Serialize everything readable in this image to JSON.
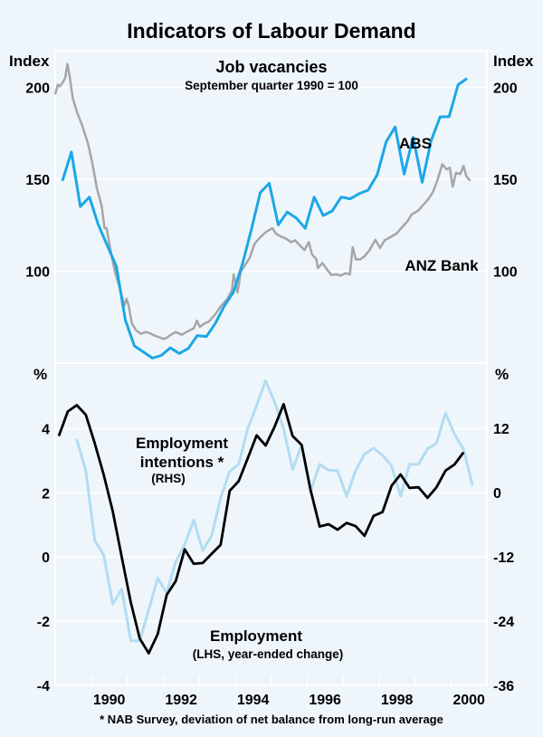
{
  "chart_data": [
    {
      "type": "line",
      "title": "Indicators of Labour Demand",
      "panel_title": "Job vacancies",
      "panel_subtitle": "September quarter 1990 = 100",
      "ylabel_left": "Index",
      "ylabel_right": "Index",
      "ylim": [
        50,
        220
      ],
      "yticks": [
        100,
        150,
        200
      ],
      "ytick_labels": [
        "100",
        "150",
        "200"
      ],
      "xlim": [
        1989,
        2001
      ],
      "grid": true,
      "series": [
        {
          "name": "ABS",
          "color": "#1ca7e6",
          "x": [
            1989.2,
            1989.45,
            1989.7,
            1989.95,
            1990.2,
            1990.45,
            1990.7,
            1990.95,
            1991.2,
            1991.45,
            1991.7,
            1991.95,
            1992.2,
            1992.45,
            1992.7,
            1992.95,
            1993.2,
            1993.45,
            1993.7,
            1993.95,
            1994.2,
            1994.45,
            1994.7,
            1994.95,
            1995.2,
            1995.45,
            1995.7,
            1995.95,
            1996.2,
            1996.45,
            1996.7,
            1996.95,
            1997.2,
            1997.45,
            1997.7,
            1997.95,
            1998.2,
            1998.45,
            1998.7,
            1998.95,
            1999.2,
            1999.45,
            1999.7,
            1999.95,
            2000.2,
            2000.45
          ],
          "y": [
            149.2,
            164.8,
            135.2,
            140.3,
            125.2,
            113.9,
            102.6,
            73.4,
            59.3,
            56.1,
            52.7,
            54.2,
            58.3,
            55.2,
            58.0,
            65.0,
            64.4,
            71.6,
            81.0,
            88.5,
            103.6,
            122.4,
            142.8,
            147.8,
            125.2,
            132.2,
            129.0,
            123.3,
            140.3,
            130.3,
            132.8,
            140.3,
            139.4,
            142.2,
            144.1,
            152.5,
            170.4,
            178.5,
            152.9,
            172.9,
            148.4,
            171.0,
            184.0,
            184.2,
            201.5,
            204.9
          ]
        },
        {
          "name": "ANZ Bank",
          "color": "#a6a6a6",
          "x": [
            1989.0,
            1989.07,
            1989.13,
            1989.22,
            1989.28,
            1989.34,
            1989.4,
            1989.49,
            1989.61,
            1989.74,
            1989.91,
            1990.03,
            1990.16,
            1990.29,
            1990.37,
            1990.43,
            1990.54,
            1990.66,
            1990.83,
            1990.92,
            1990.98,
            1991.04,
            1991.13,
            1991.25,
            1991.38,
            1991.51,
            1991.63,
            1991.76,
            1991.89,
            1992.01,
            1992.1,
            1992.18,
            1992.35,
            1992.52,
            1992.69,
            1992.85,
            1992.94,
            1993.02,
            1993.15,
            1993.27,
            1993.44,
            1993.61,
            1993.78,
            1993.91,
            1993.96,
            1994.03,
            1994.07,
            1994.16,
            1994.29,
            1994.41,
            1994.54,
            1994.71,
            1994.87,
            1995.04,
            1995.13,
            1995.29,
            1995.42,
            1995.55,
            1995.67,
            1995.8,
            1995.93,
            1996.05,
            1996.14,
            1996.26,
            1996.3,
            1996.43,
            1996.56,
            1996.68,
            1996.81,
            1996.94,
            1997.06,
            1997.19,
            1997.27,
            1997.36,
            1997.48,
            1997.61,
            1997.74,
            1997.9,
            1998.03,
            1998.16,
            1998.33,
            1998.49,
            1998.66,
            1998.79,
            1998.91,
            1999.08,
            1999.21,
            1999.38,
            1999.5,
            1999.63,
            1999.76,
            1999.88,
            1999.97,
            2000.05,
            2000.14,
            2000.26,
            2000.35,
            2000.43,
            2000.54
          ],
          "y": [
            196.2,
            201.5,
            200.6,
            203.0,
            205.3,
            212.8,
            206.2,
            194.0,
            186.4,
            179.9,
            169.5,
            159.2,
            145.0,
            135.6,
            123.4,
            123.4,
            111.1,
            99.8,
            88.5,
            81.0,
            85.1,
            81.4,
            71.6,
            67.8,
            65.9,
            66.9,
            66.3,
            65.0,
            64.0,
            63.1,
            63.7,
            65.0,
            66.9,
            65.4,
            67.4,
            68.8,
            73.1,
            69.7,
            71.6,
            72.5,
            76.3,
            81.0,
            84.8,
            89.5,
            98.3,
            92.3,
            88.5,
            99.8,
            103.6,
            107.4,
            114.9,
            118.7,
            121.5,
            123.4,
            120.5,
            118.7,
            117.7,
            115.8,
            116.8,
            114.0,
            111.5,
            115.8,
            109.2,
            106.4,
            101.7,
            104.5,
            100.8,
            97.9,
            98.3,
            97.6,
            98.9,
            98.3,
            113.0,
            106.4,
            106.4,
            108.3,
            111.5,
            117.1,
            112.6,
            116.8,
            118.7,
            120.5,
            124.3,
            127.1,
            130.9,
            132.8,
            135.6,
            139.4,
            143.1,
            149.7,
            158.2,
            155.4,
            156.3,
            146.0,
            153.5,
            152.9,
            157.3,
            151.6,
            149.2
          ]
        }
      ]
    },
    {
      "type": "line",
      "ylabel_left": "%",
      "ylabel_right": "%",
      "ylim_left": [
        -4,
        6.04
      ],
      "ylim_right": [
        -36,
        24.2
      ],
      "yticks_left": [
        -4,
        -2,
        0,
        2,
        4
      ],
      "ytick_labels_left": [
        "-4",
        "-2",
        "0",
        "2",
        "4"
      ],
      "yticks_right": [
        -36,
        -24,
        -12,
        0,
        12
      ],
      "ytick_labels_right": [
        "-36",
        "-24",
        "-12",
        "0",
        "12"
      ],
      "xlim": [
        1989,
        2001
      ],
      "xtick_labels": [
        "1990",
        "1992",
        "1994",
        "1996",
        "1998",
        "2000"
      ],
      "grid": true,
      "series": [
        {
          "name": "Employment",
          "label_detail": "(LHS, year-ended change)",
          "axis": "left",
          "color": "#000000",
          "x": [
            1989.1,
            1989.35,
            1989.6,
            1989.85,
            1990.1,
            1990.35,
            1990.6,
            1990.85,
            1991.1,
            1991.35,
            1991.6,
            1991.85,
            1992.1,
            1992.35,
            1992.6,
            1992.85,
            1993.1,
            1993.35,
            1993.6,
            1993.85,
            1994.1,
            1994.35,
            1994.6,
            1994.85,
            1995.1,
            1995.35,
            1995.6,
            1995.85,
            1996.1,
            1996.35,
            1996.6,
            1996.85,
            1997.1,
            1997.35,
            1997.6,
            1997.85,
            1998.1,
            1998.35,
            1998.6,
            1998.85,
            1999.1,
            1999.35,
            1999.6,
            1999.85,
            2000.1,
            2000.35
          ],
          "y": [
            3.77,
            4.53,
            4.73,
            4.43,
            3.54,
            2.55,
            1.42,
            0.0,
            -1.41,
            -2.54,
            -3.0,
            -2.4,
            -1.18,
            -0.75,
            0.24,
            -0.21,
            -0.19,
            0.1,
            0.38,
            2.06,
            2.36,
            3.07,
            3.79,
            3.47,
            4.06,
            4.76,
            3.77,
            3.49,
            2.08,
            0.95,
            1.02,
            0.85,
            1.06,
            0.96,
            0.66,
            1.28,
            1.4,
            2.22,
            2.57,
            2.15,
            2.17,
            1.84,
            2.17,
            2.69,
            2.88,
            3.26
          ]
        },
        {
          "name": "Employment intentions *",
          "label_detail": "(RHS)",
          "axis": "right",
          "color": "#b3dcf2",
          "x": [
            1989.6,
            1989.85,
            1990.1,
            1990.35,
            1990.6,
            1990.85,
            1991.1,
            1991.35,
            1991.6,
            1991.85,
            1992.1,
            1992.35,
            1992.6,
            1992.85,
            1993.1,
            1993.35,
            1993.6,
            1993.85,
            1994.1,
            1994.35,
            1994.6,
            1994.85,
            1995.1,
            1995.35,
            1995.6,
            1995.85,
            1996.1,
            1996.35,
            1996.6,
            1996.85,
            1997.1,
            1997.35,
            1997.6,
            1997.85,
            1998.1,
            1998.35,
            1998.6,
            1998.85,
            1999.1,
            1999.35,
            1999.6,
            1999.85,
            2000.1,
            2000.35,
            2000.6
          ],
          "y": [
            10.0,
            4.1,
            -8.9,
            -11.7,
            -20.8,
            -18.0,
            -27.7,
            -27.7,
            -21.9,
            -16.0,
            -18.7,
            -12.9,
            -9.7,
            -5.1,
            -10.8,
            -8.0,
            -1.0,
            4.0,
            5.3,
            11.9,
            16.3,
            20.9,
            16.9,
            11.9,
            4.3,
            8.9,
            0.2,
            5.3,
            4.2,
            4.1,
            -0.7,
            4.1,
            7.2,
            8.3,
            7.0,
            5.0,
            -0.7,
            5.3,
            5.3,
            8.2,
            9.2,
            14.9,
            10.9,
            8.1,
            1.3
          ]
        }
      ],
      "footnote": "* NAB Survey, deviation of net balance from long-run average"
    }
  ]
}
